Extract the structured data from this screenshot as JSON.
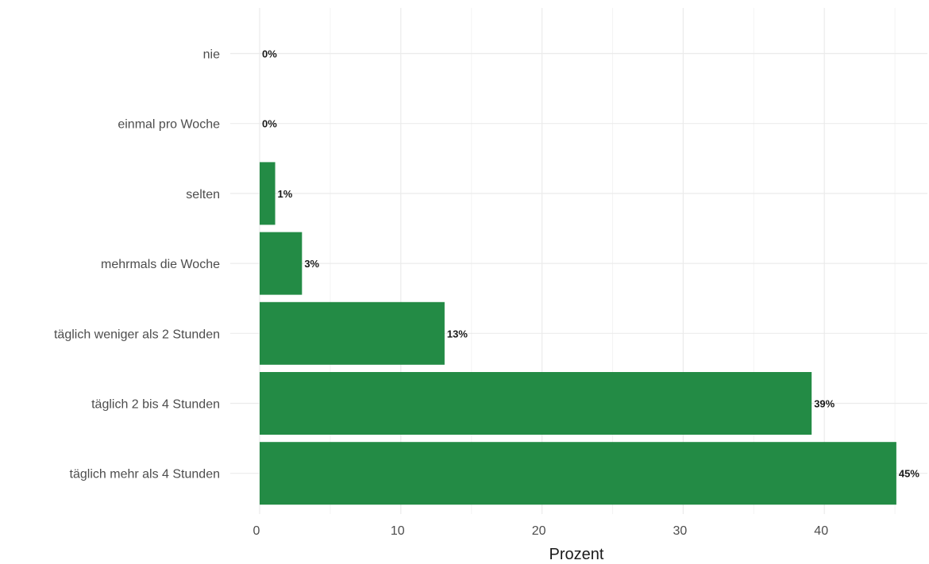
{
  "chart_data": {
    "type": "bar",
    "orientation": "horizontal",
    "categories": [
      "nie",
      "einmal pro Woche",
      "selten",
      "mehrmals die Woche",
      "täglich weniger als 2 Stunden",
      "täglich 2 bis 4 Stunden",
      "täglich mehr als 4 Stunden"
    ],
    "values": [
      0,
      0,
      1.1,
      3.0,
      13.1,
      39.1,
      45.1
    ],
    "data_labels": [
      "0%",
      "0%",
      "1%",
      "3%",
      "13%",
      "39%",
      "45%"
    ],
    "xlabel": "Prozent",
    "ylabel": "",
    "xlim": [
      0,
      45.1
    ],
    "xticks": [
      0,
      10,
      20,
      30,
      40
    ],
    "grid": true,
    "bar_color": "#238b45"
  }
}
